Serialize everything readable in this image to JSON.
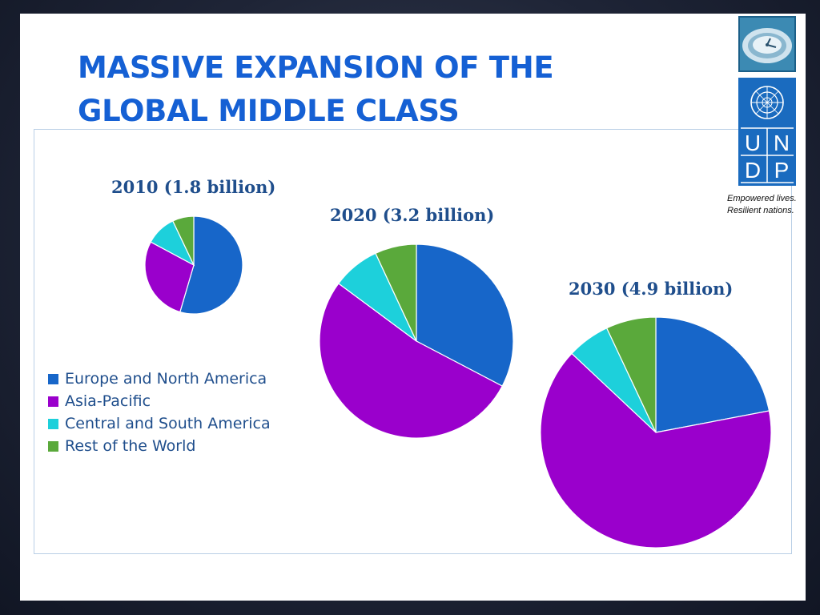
{
  "slide": {
    "title_lines": [
      "MASSIVE EXPANSION OF THE",
      "GLOBAL MIDDLE CLASS"
    ],
    "logo": {
      "top_icon": "globe-clock-icon",
      "emblem_icon": "un-emblem-icon",
      "letters": [
        "U",
        "N",
        "D",
        "P"
      ],
      "tagline_lines": [
        "Empowered lives.",
        "Resilient nations."
      ],
      "color": "#1a6bbf"
    }
  },
  "chart_data": [
    {
      "type": "pie",
      "title": "2010 (1.8 billion)",
      "categories": [
        "Europe and North America",
        "Asia-Pacific",
        "Central and South America",
        "Rest of the World"
      ],
      "values": [
        54,
        28,
        10,
        7
      ]
    },
    {
      "type": "pie",
      "title": "2020 (3.2 billion)",
      "categories": [
        "Europe and North America",
        "Asia-Pacific",
        "Central and South America",
        "Rest of the World"
      ],
      "values": [
        33,
        53,
        8,
        7
      ]
    },
    {
      "type": "pie",
      "title": "2030 (4.9 billion)",
      "categories": [
        "Europe and North America",
        "Asia-Pacific",
        "Central and South America",
        "Rest of the World"
      ],
      "values": [
        22,
        65,
        6,
        7
      ]
    }
  ],
  "legend": [
    {
      "label": "Europe and North America",
      "color": "#1766c9"
    },
    {
      "label": "Asia-Pacific",
      "color": "#9a00cc"
    },
    {
      "label": "Central and South America",
      "color": "#1dd0db"
    },
    {
      "label": "Rest of the World",
      "color": "#5aa93b"
    }
  ]
}
